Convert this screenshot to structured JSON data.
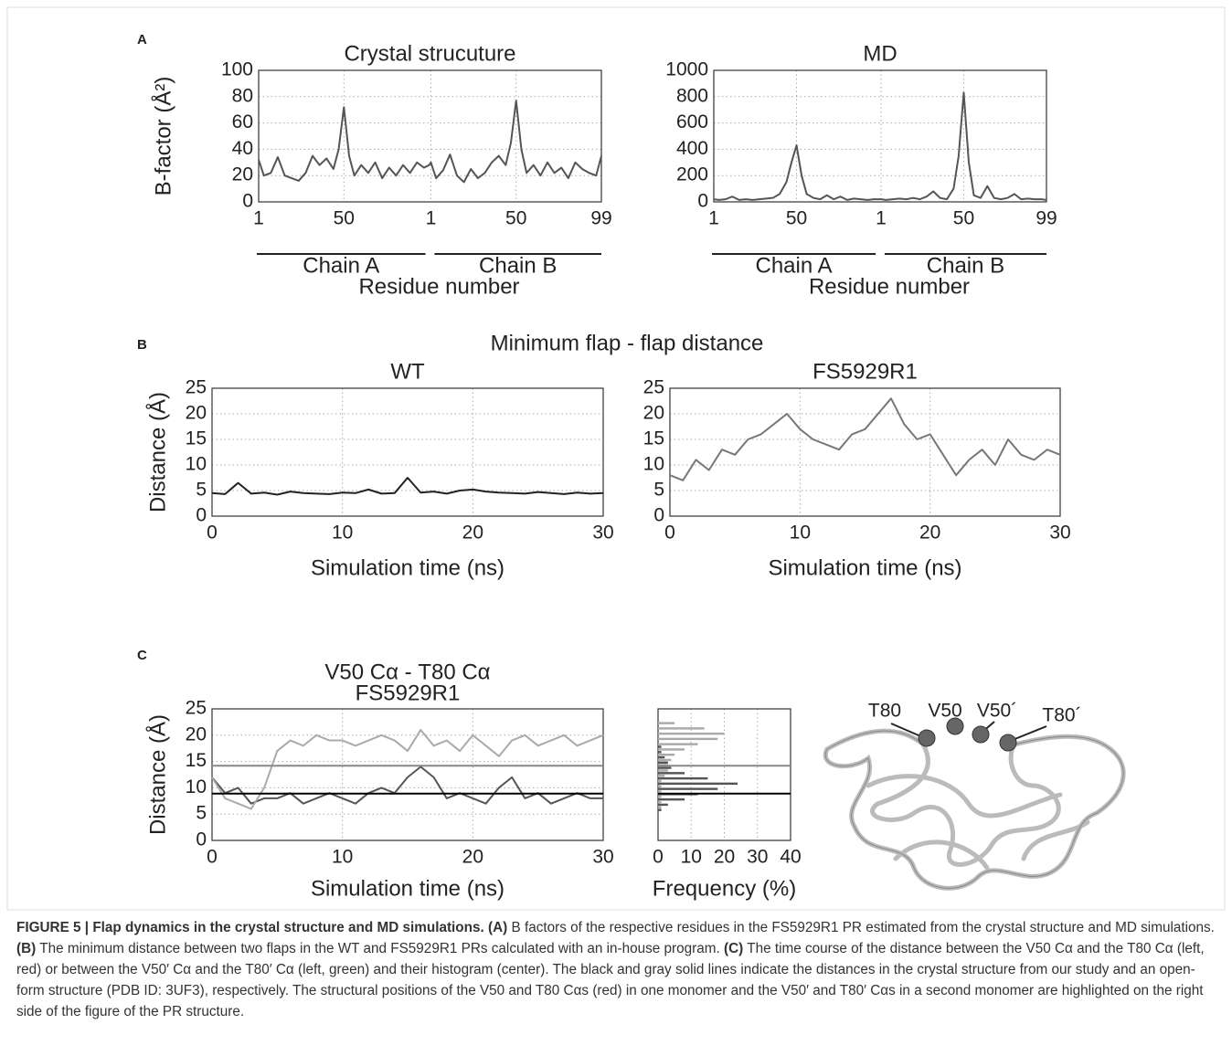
{
  "figure": {
    "panel_labels": [
      "A",
      "B",
      "C"
    ],
    "panel_b_title": "Minimum flap - flap distance"
  },
  "chart_data": [
    {
      "type": "line",
      "title": "Crystal strucuture",
      "ylabel": "B-factor (Å²)",
      "xlabel": "Residue number",
      "segments": [
        {
          "label": "Chain A",
          "range": [
            1,
            99
          ]
        },
        {
          "label": "Chain B",
          "range": [
            100,
            198
          ]
        }
      ],
      "xlim": [
        1,
        198
      ],
      "xticks": [
        1,
        50,
        {
          "value": 100,
          "label": "1"
        },
        {
          "value": 149,
          "label": "50"
        },
        {
          "value": 198,
          "label": "99"
        }
      ],
      "ylim": [
        0,
        100
      ],
      "yticks": [
        0,
        20,
        40,
        60,
        80,
        100
      ],
      "grid": true,
      "x": [
        1,
        4,
        8,
        12,
        16,
        20,
        24,
        28,
        32,
        36,
        40,
        44,
        47,
        50,
        53,
        56,
        60,
        64,
        68,
        72,
        76,
        80,
        84,
        88,
        92,
        96,
        99,
        100,
        103,
        107,
        111,
        115,
        119,
        123,
        127,
        131,
        135,
        139,
        143,
        146,
        149,
        152,
        155,
        159,
        163,
        167,
        171,
        175,
        179,
        183,
        187,
        191,
        195,
        198
      ],
      "series": [
        {
          "color": "#555",
          "values": [
            32,
            20,
            22,
            34,
            20,
            18,
            16,
            22,
            35,
            28,
            33,
            25,
            40,
            72,
            35,
            20,
            28,
            22,
            30,
            18,
            26,
            20,
            28,
            22,
            30,
            26,
            28,
            30,
            18,
            24,
            36,
            20,
            15,
            25,
            18,
            22,
            30,
            35,
            28,
            45,
            77,
            40,
            22,
            28,
            20,
            30,
            22,
            26,
            18,
            30,
            25,
            22,
            20,
            35
          ]
        }
      ]
    },
    {
      "type": "line",
      "title": "MD",
      "xlabel": "Residue number",
      "segments": [
        {
          "label": "Chain A",
          "range": [
            1,
            99
          ]
        },
        {
          "label": "Chain B",
          "range": [
            100,
            198
          ]
        }
      ],
      "xlim": [
        1,
        198
      ],
      "xticks": [
        1,
        50,
        {
          "value": 100,
          "label": "1"
        },
        {
          "value": 149,
          "label": "50"
        },
        {
          "value": 198,
          "label": "99"
        }
      ],
      "ylim": [
        0,
        1000
      ],
      "yticks": [
        0,
        200,
        400,
        600,
        800,
        1000
      ],
      "grid": true,
      "x": [
        1,
        4,
        8,
        12,
        16,
        20,
        24,
        28,
        32,
        36,
        40,
        44,
        47,
        50,
        53,
        56,
        60,
        64,
        68,
        72,
        76,
        80,
        84,
        88,
        92,
        96,
        99,
        100,
        103,
        107,
        111,
        115,
        119,
        123,
        127,
        131,
        135,
        139,
        143,
        146,
        149,
        152,
        155,
        159,
        163,
        167,
        171,
        175,
        179,
        183,
        187,
        191,
        195,
        198
      ],
      "series": [
        {
          "color": "#555",
          "values": [
            20,
            15,
            20,
            40,
            15,
            20,
            15,
            20,
            25,
            30,
            60,
            150,
            300,
            430,
            200,
            60,
            30,
            20,
            50,
            20,
            40,
            15,
            25,
            20,
            15,
            20,
            20,
            20,
            15,
            20,
            25,
            20,
            30,
            20,
            40,
            80,
            30,
            20,
            100,
            350,
            830,
            300,
            50,
            30,
            120,
            30,
            20,
            30,
            60,
            20,
            25,
            20,
            20,
            15
          ]
        }
      ]
    },
    {
      "type": "line",
      "title": "WT",
      "ylabel": "Distance (Å)",
      "xlabel": "Simulation time (ns)",
      "xlim": [
        0,
        30
      ],
      "xticks": [
        0,
        10,
        20,
        30
      ],
      "ylim": [
        0,
        25
      ],
      "yticks": [
        0,
        5,
        10,
        15,
        20,
        25
      ],
      "grid": true,
      "x": [
        0,
        1,
        2,
        3,
        4,
        5,
        6,
        7,
        8,
        9,
        10,
        11,
        12,
        13,
        14,
        15,
        16,
        17,
        18,
        19,
        20,
        21,
        22,
        23,
        24,
        25,
        26,
        27,
        28,
        29,
        30
      ],
      "series": [
        {
          "color": "#222",
          "values": [
            4.5,
            4.3,
            6.5,
            4.4,
            4.6,
            4.2,
            4.8,
            4.5,
            4.4,
            4.3,
            4.6,
            4.5,
            5.2,
            4.4,
            4.5,
            7.5,
            4.6,
            4.8,
            4.4,
            5.0,
            5.2,
            4.8,
            4.6,
            4.5,
            4.4,
            4.7,
            4.5,
            4.3,
            4.6,
            4.4,
            4.5
          ]
        }
      ]
    },
    {
      "type": "line",
      "title": "FS5929R1",
      "xlabel": "Simulation time (ns)",
      "xlim": [
        0,
        30
      ],
      "xticks": [
        0,
        10,
        20,
        30
      ],
      "ylim": [
        0,
        25
      ],
      "yticks": [
        0,
        5,
        10,
        15,
        20,
        25
      ],
      "grid": true,
      "x": [
        0,
        1,
        2,
        3,
        4,
        5,
        6,
        7,
        8,
        9,
        10,
        11,
        12,
        13,
        14,
        15,
        16,
        17,
        18,
        19,
        20,
        21,
        22,
        23,
        24,
        25,
        26,
        27,
        28,
        29,
        30
      ],
      "series": [
        {
          "color": "#777",
          "values": [
            8,
            7,
            11,
            9,
            13,
            12,
            15,
            16,
            18,
            20,
            17,
            15,
            14,
            13,
            16,
            17,
            20,
            23,
            18,
            15,
            16,
            12,
            8,
            11,
            13,
            10,
            15,
            12,
            11,
            13,
            12
          ]
        }
      ]
    },
    {
      "type": "line",
      "title": "V50 Cα - T80 Cα",
      "subtitle": "FS5929R1",
      "ylabel": "Distance (Å)",
      "xlabel": "Simulation time (ns)",
      "xlim": [
        0,
        30
      ],
      "xticks": [
        0,
        10,
        20,
        30
      ],
      "ylim": [
        0,
        25
      ],
      "yticks": [
        0,
        5,
        10,
        15,
        20,
        25
      ],
      "grid": true,
      "x": [
        0,
        1,
        2,
        3,
        4,
        5,
        6,
        7,
        8,
        9,
        10,
        11,
        12,
        13,
        14,
        15,
        16,
        17,
        18,
        19,
        20,
        21,
        22,
        23,
        24,
        25,
        26,
        27,
        28,
        29,
        30
      ],
      "series": [
        {
          "color": "#555",
          "values": [
            12,
            9,
            10,
            7,
            8,
            8,
            9,
            7,
            8,
            9,
            8,
            7,
            9,
            10,
            9,
            12,
            14,
            12,
            8,
            9,
            8,
            7,
            10,
            12,
            8,
            9,
            7,
            8,
            9,
            8,
            8
          ]
        },
        {
          "color": "#aaa",
          "values": [
            12,
            8,
            7,
            6,
            10,
            17,
            19,
            18,
            20,
            19,
            19,
            18,
            19,
            20,
            19,
            17,
            21,
            18,
            19,
            17,
            20,
            18,
            16,
            19,
            20,
            18,
            19,
            20,
            18,
            19,
            20
          ]
        }
      ],
      "reference_lines": [
        {
          "value": 8.9,
          "color": "#000"
        },
        {
          "value": 14.2,
          "color": "#888"
        }
      ]
    },
    {
      "type": "histogram",
      "xlabel": "Frequency (%)",
      "xlim": [
        0,
        40
      ],
      "xticks": [
        0,
        10,
        20,
        30,
        40
      ],
      "ylim": [
        0,
        25
      ],
      "grid": true,
      "bins": [
        5,
        6,
        7,
        8,
        9,
        10,
        11,
        12,
        13,
        14,
        15,
        16,
        17,
        18,
        19,
        20,
        21,
        22,
        23
      ],
      "series": [
        {
          "color": "#555",
          "values": [
            1,
            3,
            8,
            12,
            18,
            24,
            15,
            8,
            4,
            3,
            2,
            1,
            1,
            0,
            0,
            0,
            0,
            0
          ]
        },
        {
          "color": "#aaa",
          "values": [
            0,
            1,
            1,
            1,
            1,
            1,
            1,
            2,
            3,
            3,
            4,
            5,
            8,
            12,
            18,
            20,
            14,
            5
          ]
        }
      ],
      "reference_lines": [
        {
          "value": 8.9,
          "color": "#000"
        },
        {
          "value": 14.2,
          "color": "#888"
        }
      ]
    }
  ],
  "structure": {
    "labels": [
      "T80",
      "V50",
      "V50´",
      "T80´"
    ]
  },
  "caption": [
    {
      "text": "FIGURE 5 | Flap dynamics in the crystal structure and MD simulations.",
      "bold": true
    },
    {
      "text": " (A)",
      "bold": true
    },
    {
      "text": " B factors of the respective residues in the FS5929R1 PR estimated from the crystal structure and MD simulations. ",
      "bold": false
    },
    {
      "text": "(B)",
      "bold": true
    },
    {
      "text": " The minimum distance between two flaps in the WT and FS5929R1 PRs calculated with an in-house program. ",
      "bold": false
    },
    {
      "text": "(C)",
      "bold": true
    },
    {
      "text": " The time course of the distance between the V50 Cα and the T80 Cα (left, red) or between the V50′ Cα and the T80′ Cα (left, green) and their histogram (center). The black and gray solid lines indicate the distances in the crystal structure from our study and an open-form structure (PDB ID: 3UF3), respectively. The structural positions of the V50 and T80 Cαs (red) in one monomer and the V50′ and T80′ Cαs in a second monomer are highlighted on the right side of the figure of the PR structure.",
      "bold": false
    }
  ]
}
